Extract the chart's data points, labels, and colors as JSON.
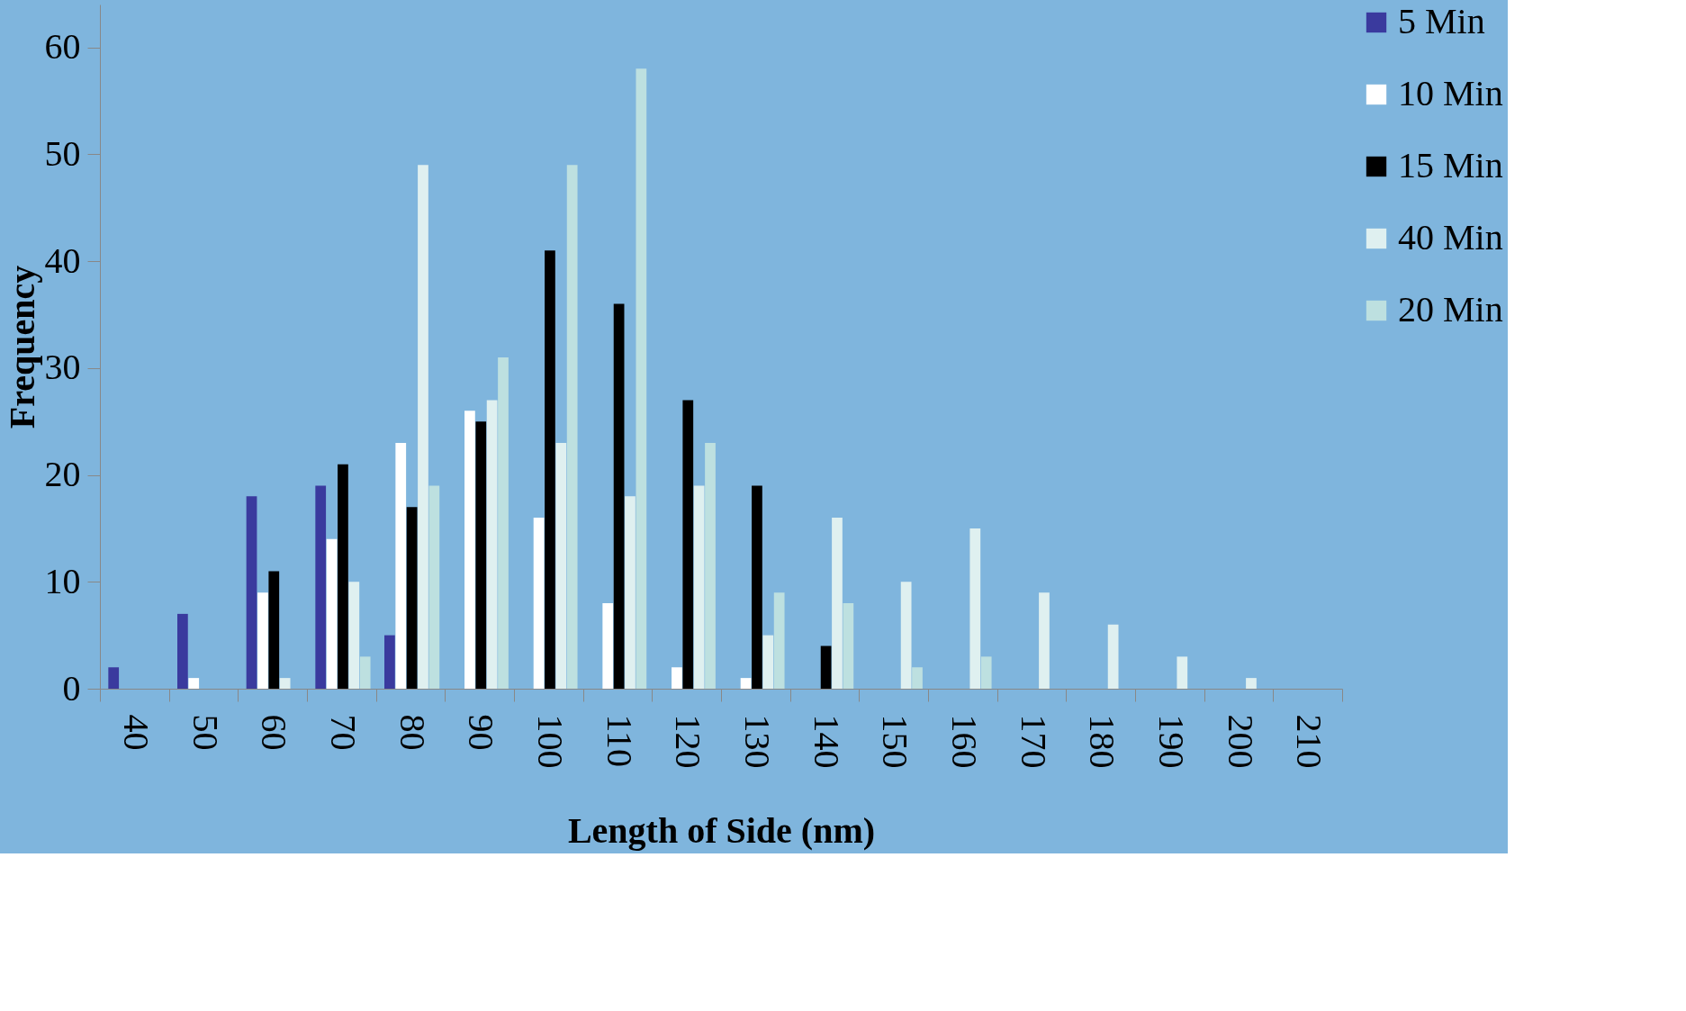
{
  "chart_data": {
    "type": "bar",
    "xlabel": "Length of Side (nm)",
    "ylabel": "Frequency",
    "categories": [
      "40",
      "50",
      "60",
      "70",
      "80",
      "90",
      "100",
      "110",
      "120",
      "130",
      "140",
      "150",
      "160",
      "170",
      "180",
      "190",
      "200",
      "210"
    ],
    "series": [
      {
        "name": "5 Min",
        "color": "#3a3a9e",
        "values": [
          2,
          7,
          18,
          19,
          5,
          0,
          0,
          0,
          0,
          0,
          0,
          0,
          0,
          0,
          0,
          0,
          0,
          null
        ]
      },
      {
        "name": "10 Min",
        "color": "#ffffff",
        "values": [
          0,
          1,
          9,
          14,
          23,
          26,
          16,
          8,
          2,
          1,
          0,
          0,
          0,
          0,
          0,
          0,
          0,
          null
        ]
      },
      {
        "name": "15 Min",
        "color": "#000000",
        "values": [
          0,
          0,
          11,
          21,
          17,
          25,
          41,
          36,
          27,
          19,
          4,
          0,
          0,
          0,
          0,
          0,
          0,
          null
        ]
      },
      {
        "name": "40 Min",
        "color": "#dff0f0",
        "values": [
          0,
          0,
          1,
          10,
          49,
          27,
          23,
          18,
          19,
          5,
          16,
          10,
          15,
          9,
          6,
          3,
          1,
          null
        ]
      },
      {
        "name": "20 Min",
        "color": "#bde0e0",
        "values": [
          0,
          0,
          0,
          3,
          19,
          31,
          49,
          58,
          23,
          9,
          8,
          2,
          3,
          0,
          0,
          0,
          0,
          null
        ]
      }
    ],
    "ylim": [
      0,
      64
    ],
    "yticks": [
      0,
      10,
      20,
      30,
      40,
      50,
      60
    ],
    "grid": false,
    "legend": "right"
  }
}
